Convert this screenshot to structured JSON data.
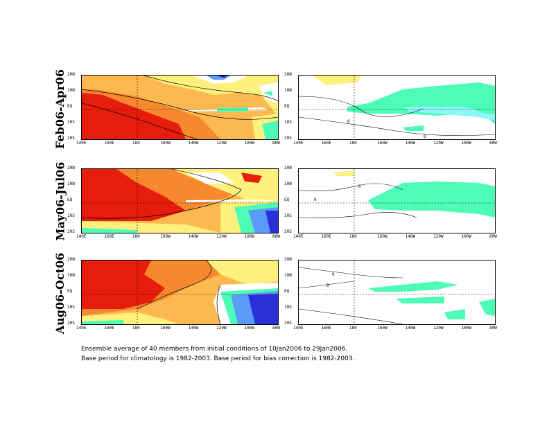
{
  "rows": [
    {
      "label": "Feb06-Apr06"
    },
    {
      "label": "May06-Jul06"
    },
    {
      "label": "Aug06-Oct06"
    }
  ],
  "axes": {
    "x_ticks": [
      "140E",
      "160E",
      "180",
      "160W",
      "140W",
      "120W",
      "100W",
      "80W"
    ],
    "y_ticks": [
      "20N",
      "10N",
      "EQ",
      "10S",
      "20S"
    ]
  },
  "contour_labels": {
    "row1_right": [
      "0",
      "0"
    ],
    "row2_right": [
      "0",
      "0"
    ],
    "row3_right": [
      "0",
      "0"
    ]
  },
  "colors": {
    "red": "#e61c0c",
    "orange": "#f6882e",
    "light_orange": "#fdb94f",
    "yellow": "#fdf07c",
    "aqua": "#4dfcb6",
    "cyan": "#8cf6f8",
    "blue": "#5a9af8",
    "dark_blue": "#2a30d8",
    "purple": "#3a0a78"
  },
  "caption": {
    "line1": "Ensemble average of 40 members from initial conditions of 10Jan2006 to 29Jan2006.",
    "line2": "Base period for climatology is 1982-2003. Base period for bias correction is 1982-2003."
  }
}
